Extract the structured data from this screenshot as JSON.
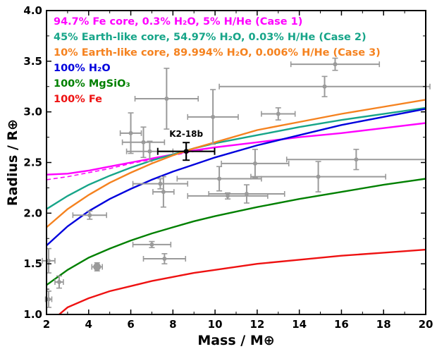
{
  "chart_data": {
    "type": "scatter",
    "title": "",
    "xlabel": "Mass / M⊕",
    "ylabel": "Radius / R⊕",
    "xlim": [
      2,
      20
    ],
    "ylim": [
      1.0,
      4.0
    ],
    "xticks": [
      "2",
      "4",
      "6",
      "8",
      "10",
      "12",
      "14",
      "16",
      "18",
      "20"
    ],
    "yticks": [
      "1.0",
      "1.5",
      "2.0",
      "2.5",
      "3.0",
      "3.5",
      "4.0"
    ],
    "grid": false,
    "legend_position": "top-left",
    "legend_entries": [
      {
        "text": "94.7% Fe core, 0.3% H₂O, 5% H/He (Case 1)",
        "color": "#ff00ff"
      },
      {
        "text": "45% Earth-like core, 54.97% H₂O, 0.03% H/He (Case 2)",
        "color": "#17a589"
      },
      {
        "text": "10% Earth-like core, 89.994% H₂O, 0.006% H/He (Case 3)",
        "color": "#f5821f"
      },
      {
        "text": "100% H₂O",
        "color": "#0000dd"
      },
      {
        "text": "100% MgSiO₃",
        "color": "#008000"
      },
      {
        "text": "100% Fe",
        "color": "#ee1111"
      }
    ],
    "series": [
      {
        "name": "94.7% Fe core, 0.3% H₂O, 5% H/He (Case 1)",
        "color": "#ff00ff",
        "x": [
          2,
          3,
          4,
          5,
          6,
          7,
          8,
          9,
          10,
          12,
          14,
          16,
          18,
          20
        ],
        "y": [
          2.38,
          2.39,
          2.42,
          2.46,
          2.5,
          2.54,
          2.58,
          2.62,
          2.65,
          2.7,
          2.75,
          2.79,
          2.84,
          2.89
        ]
      },
      {
        "name": "Case 1 (dashed)",
        "color": "#ff00ff",
        "dashed": true,
        "x": [
          2,
          3,
          4,
          5,
          6,
          7,
          8,
          9,
          10
        ],
        "y": [
          2.33,
          2.36,
          2.4,
          2.44,
          2.49,
          2.53,
          2.57,
          2.61,
          2.65
        ]
      },
      {
        "name": "45% Earth-like core, 54.97% H₂O, 0.03% H/He (Case 2)",
        "color": "#17a589",
        "x": [
          2,
          3,
          4,
          5,
          6,
          7,
          8,
          9,
          10,
          12,
          14,
          16,
          18,
          20
        ],
        "y": [
          2.04,
          2.17,
          2.28,
          2.37,
          2.45,
          2.52,
          2.58,
          2.64,
          2.69,
          2.77,
          2.85,
          2.92,
          2.98,
          3.04
        ]
      },
      {
        "name": "10% Earth-like core, 89.994% H₂O, 0.006% H/He (Case 3)",
        "color": "#f5821f",
        "x": [
          2,
          3,
          4,
          5,
          6,
          7,
          8,
          9,
          10,
          12,
          14,
          16,
          18,
          20
        ],
        "y": [
          1.86,
          2.04,
          2.18,
          2.3,
          2.4,
          2.49,
          2.57,
          2.64,
          2.7,
          2.82,
          2.9,
          2.98,
          3.05,
          3.12
        ]
      },
      {
        "name": "100% H₂O",
        "color": "#0000dd",
        "x": [
          2,
          3,
          4,
          5,
          6,
          7,
          8,
          9,
          10,
          12,
          14,
          16,
          18,
          20
        ],
        "y": [
          1.68,
          1.87,
          2.02,
          2.14,
          2.24,
          2.33,
          2.41,
          2.48,
          2.55,
          2.67,
          2.77,
          2.87,
          2.95,
          3.03
        ]
      },
      {
        "name": "100% MgSiO₃",
        "color": "#008000",
        "x": [
          2,
          3,
          4,
          5,
          6,
          7,
          8,
          9,
          10,
          12,
          14,
          16,
          18,
          20
        ],
        "y": [
          1.29,
          1.44,
          1.56,
          1.65,
          1.73,
          1.8,
          1.86,
          1.92,
          1.97,
          2.06,
          2.14,
          2.21,
          2.28,
          2.34
        ]
      },
      {
        "name": "100% Fe",
        "color": "#ee1111",
        "x": [
          2.6,
          3,
          4,
          5,
          6,
          7,
          8,
          9,
          10,
          12,
          14,
          16,
          18,
          20
        ],
        "y": [
          1.0,
          1.07,
          1.16,
          1.23,
          1.28,
          1.33,
          1.37,
          1.41,
          1.44,
          1.5,
          1.54,
          1.58,
          1.61,
          1.64
        ]
      }
    ],
    "points": [
      {
        "x": 2.1,
        "y": 1.53,
        "xerr": 0.3,
        "yerr": 0.12
      },
      {
        "x": 2.1,
        "y": 1.15,
        "xerr": 0.15,
        "yerr": 0.08
      },
      {
        "x": 2.6,
        "y": 1.32,
        "xerr": 0.2,
        "yerr": 0.06
      },
      {
        "x": 4.05,
        "y": 1.98,
        "xerr": 0.8,
        "yerr": 0.04
      },
      {
        "x": 4.4,
        "y": 1.47,
        "xerr": 0.25,
        "yerr": 0.04,
        "big": true
      },
      {
        "x": 6.0,
        "y": 2.79,
        "xerr": 0.5,
        "yerr": 0.2
      },
      {
        "x": 6.6,
        "y": 2.7,
        "xerr": 1.0,
        "yerr": 0.15
      },
      {
        "x": 6.9,
        "y": 2.61,
        "xerr": 1.1,
        "yerr": 0.1
      },
      {
        "x": 7.0,
        "y": 1.69,
        "xerr": 0.9,
        "yerr": 0.03
      },
      {
        "x": 7.4,
        "y": 2.29,
        "xerr": 1.3,
        "yerr": 0.05
      },
      {
        "x": 7.55,
        "y": 2.21,
        "xerr": 0.5,
        "yerr": 0.15
      },
      {
        "x": 7.6,
        "y": 1.55,
        "xerr": 1.0,
        "yerr": 0.05
      },
      {
        "x": 7.7,
        "y": 3.13,
        "xerr": 1.5,
        "yerr": 0.3
      },
      {
        "x": 9.9,
        "y": 2.95,
        "xerr": 1.2,
        "yerr": 0.27
      },
      {
        "x": 10.2,
        "y": 2.34,
        "xerr": 2.0,
        "yerr": 0.12
      },
      {
        "x": 10.6,
        "y": 2.17,
        "xerr": 1.9,
        "yerr": 0.03
      },
      {
        "x": 11.5,
        "y": 2.19,
        "xerr": 1.8,
        "yerr": 0.09
      },
      {
        "x": 11.9,
        "y": 2.49,
        "xerr": 1.6,
        "yerr": 0.14
      },
      {
        "x": 13.0,
        "y": 2.98,
        "xerr": 0.8,
        "yerr": 0.06
      },
      {
        "x": 14.9,
        "y": 2.36,
        "xerr": 3.2,
        "yerr": 0.15
      },
      {
        "x": 15.2,
        "y": 3.25,
        "xerr": 5.0,
        "yerr": 0.1
      },
      {
        "x": 15.7,
        "y": 3.47,
        "xerr": 2.1,
        "yerr": 0.06
      },
      {
        "x": 16.7,
        "y": 2.53,
        "xerr": 3.3,
        "yerr": 0.1
      }
    ],
    "highlight": {
      "label": "K2-18b",
      "x": 8.63,
      "y": 2.61,
      "xerr": 1.35,
      "yerr": 0.087,
      "color": "#000000"
    }
  }
}
